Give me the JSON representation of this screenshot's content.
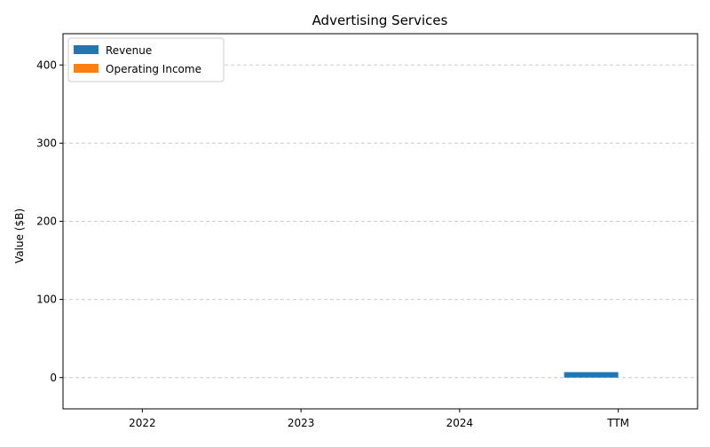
{
  "chart_data": {
    "type": "bar",
    "title": "Advertising Services",
    "xlabel": "",
    "ylabel": "Value ($B)",
    "categories": [
      "2022",
      "2023",
      "2024",
      "TTM"
    ],
    "series": [
      {
        "name": "Revenue",
        "color": "#1f77b4",
        "values": [
          0,
          0,
          0,
          7
        ]
      },
      {
        "name": "Operating Income",
        "color": "#ff7f0e",
        "values": [
          0,
          0,
          0,
          0
        ]
      }
    ],
    "ylim": [
      -40,
      440
    ],
    "yticks": [
      0,
      100,
      200,
      300,
      400
    ],
    "grid": true,
    "legend_position": "top-left"
  }
}
